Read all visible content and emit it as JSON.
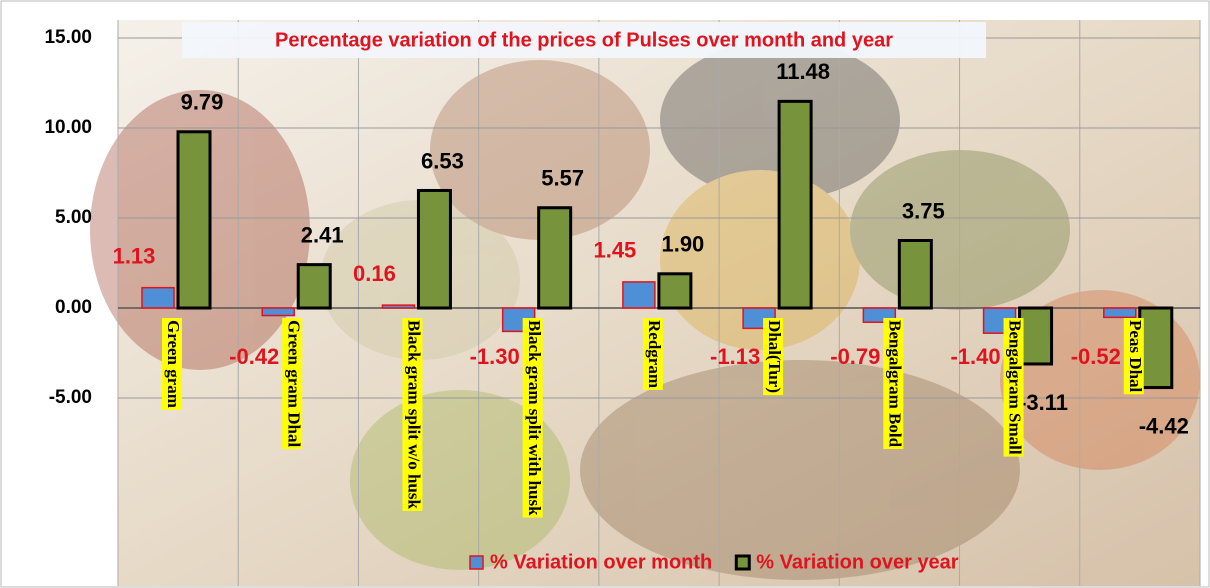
{
  "chart_data": {
    "type": "bar",
    "title": "Percentage variation of the prices of Pulses over month and year",
    "categories": [
      "Green gram",
      "Green gram Dhal",
      "Black gram split w/o husk",
      "Black gram split with husk",
      "Redgram",
      "Dhal(Tur)",
      "Bengalgram Bold",
      "Bengalgram Small",
      "Peas Dhal"
    ],
    "series": [
      {
        "name": "% Variation over month",
        "color": "#4f8fd6",
        "values": [
          1.13,
          -0.42,
          0.16,
          -1.3,
          1.45,
          -1.13,
          -0.79,
          -1.4,
          -0.52
        ],
        "value_labels": [
          "1.13",
          "-0.42",
          "0.16",
          "-1.30",
          "1.45",
          "-1.13",
          "-0.79",
          "-1.40",
          "-0.52"
        ]
      },
      {
        "name": "% Variation over year",
        "color": "#77933c",
        "values": [
          9.79,
          2.41,
          6.53,
          5.57,
          1.9,
          11.48,
          3.75,
          -3.11,
          -4.42
        ],
        "value_labels": [
          "9.79",
          "2.41",
          "6.53",
          "5.57",
          "1.90",
          "11.48",
          "3.75",
          "-3.11",
          "-4.42"
        ]
      }
    ],
    "ylim": [
      -15,
      15
    ],
    "yticks": [
      {
        "value": 15,
        "label": "15.00"
      },
      {
        "value": 10,
        "label": "10.00"
      },
      {
        "value": 5,
        "label": "5.00"
      },
      {
        "value": 0,
        "label": "0.00"
      },
      {
        "value": -5,
        "label": "-5.00"
      }
    ],
    "grid": true
  }
}
